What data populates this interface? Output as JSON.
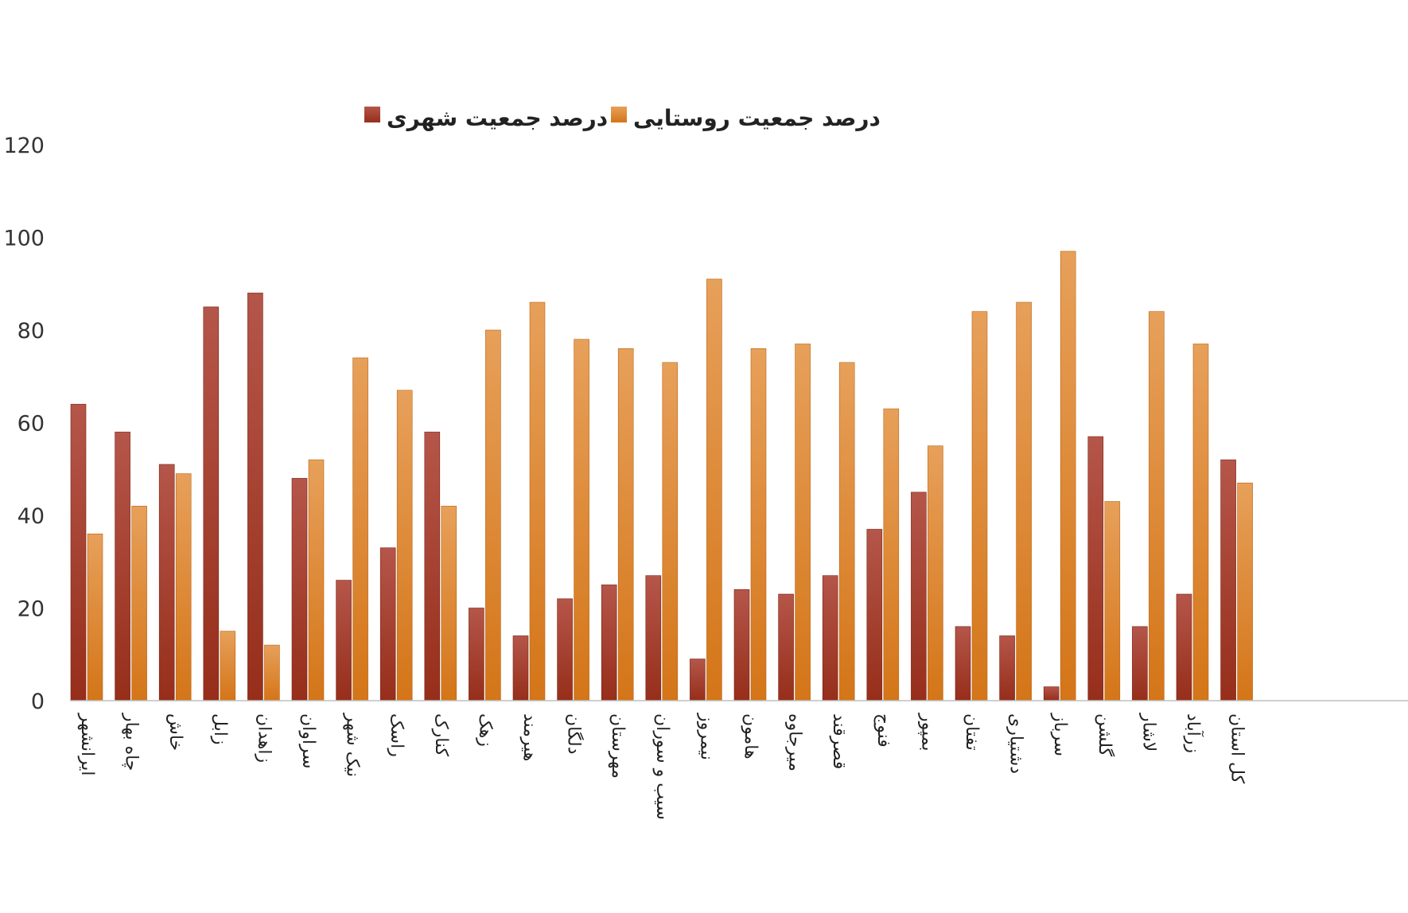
{
  "chart_data": {
    "type": "bar",
    "title": "",
    "xlabel": "",
    "ylabel": "",
    "ylim": [
      0,
      120
    ],
    "yticks": [
      0,
      20,
      40,
      60,
      80,
      100,
      120
    ],
    "grid": false,
    "legend_position": "top",
    "categories": [
      "ایرانشهر",
      "چاه بهار",
      "خاش",
      "زابل",
      "زاهدان",
      "سراوان",
      "نیک شهر",
      "راسک",
      "کنارک",
      "زهک",
      "هیرمند",
      "دلگان",
      "مهرستان",
      "سیب و سوران",
      "نیمروز",
      "هامون",
      "میرجاوه",
      "قصرقند",
      "فنوج",
      "بمپور",
      "تفتان",
      "دشتیاری",
      "سرباز",
      "گلشن",
      "لاشار",
      "زرآباد",
      "کل استان"
    ],
    "series": [
      {
        "name": "درصد جمعیت شهری",
        "color": "#a83a2a",
        "values": [
          64,
          58,
          51,
          85,
          88,
          48,
          26,
          33,
          58,
          20,
          14,
          22,
          25,
          27,
          9,
          24,
          23,
          27,
          37,
          45,
          16,
          14,
          3,
          57,
          16,
          23,
          52
        ]
      },
      {
        "name": "درصد جمعیت روستایی",
        "color": "#e08a35",
        "values": [
          36,
          42,
          49,
          15,
          12,
          52,
          74,
          67,
          42,
          80,
          86,
          78,
          76,
          73,
          91,
          76,
          77,
          73,
          63,
          55,
          84,
          86,
          97,
          43,
          84,
          77,
          47
        ]
      }
    ]
  }
}
